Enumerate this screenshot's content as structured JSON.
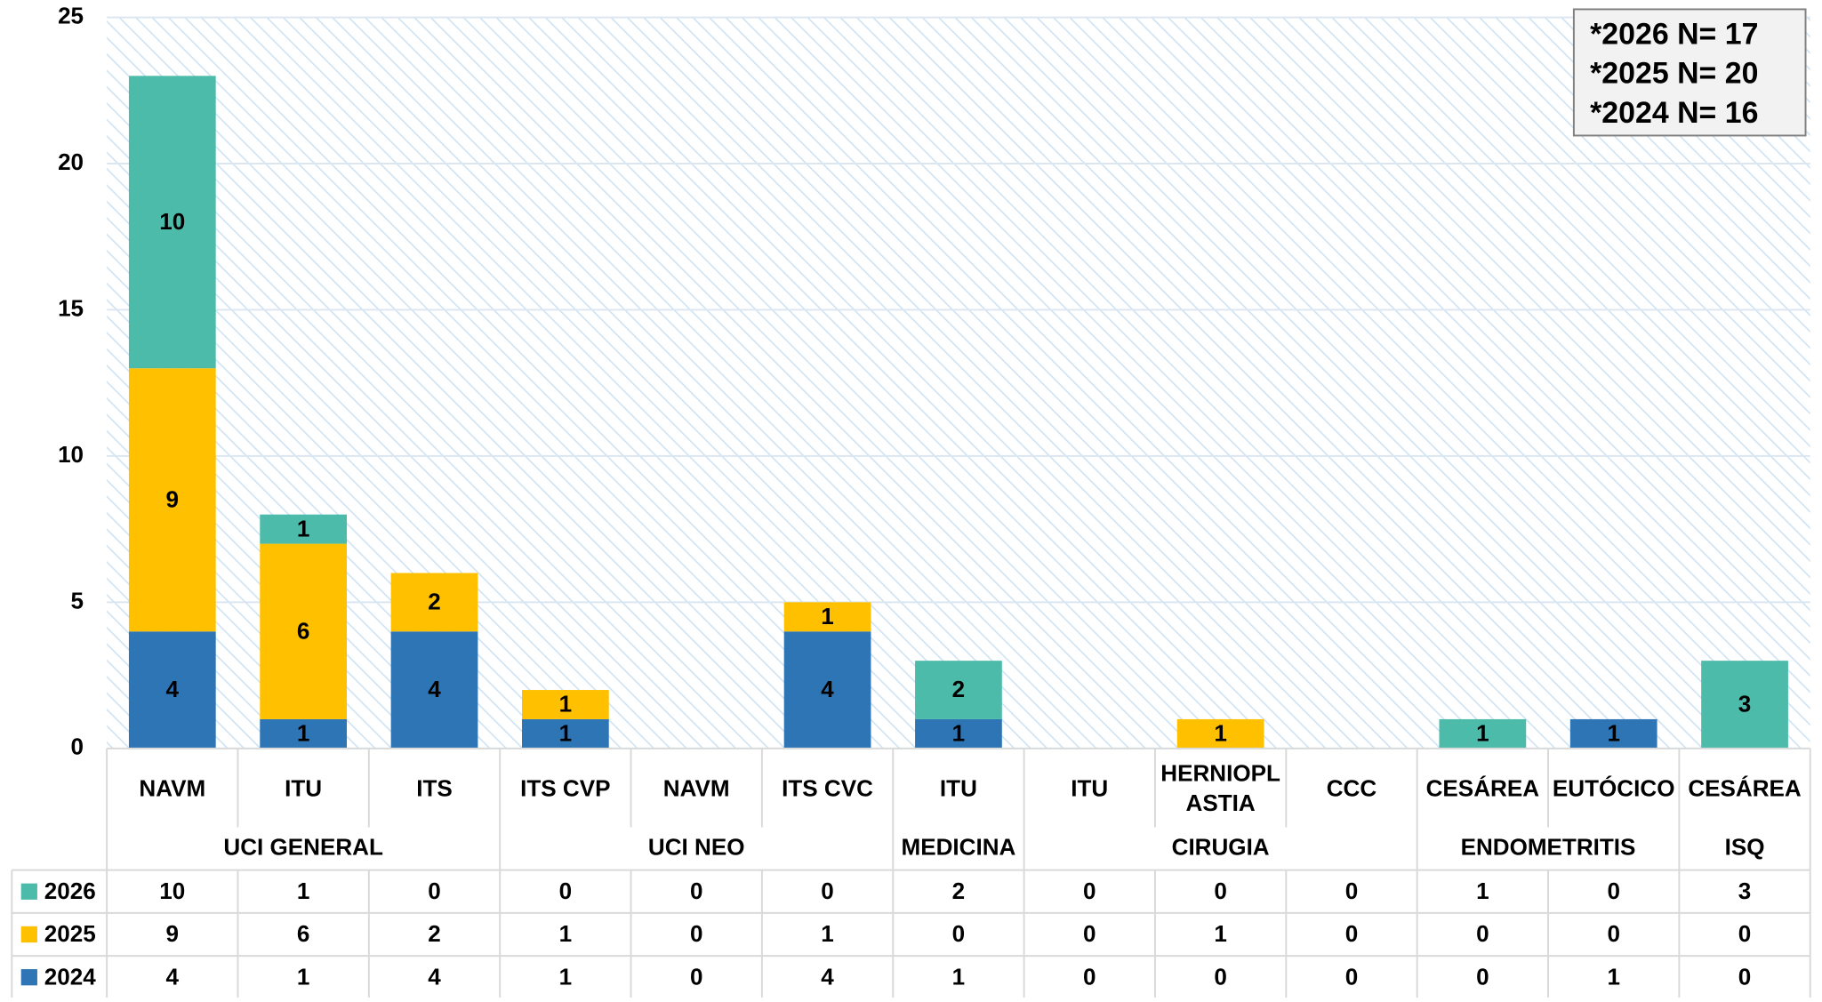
{
  "chart_data": {
    "type": "bar",
    "stacked": true,
    "categories": [
      "NAVM",
      "ITU",
      "ITS",
      "ITS CVP",
      "NAVM",
      "ITS CVC",
      "ITU",
      "ITU",
      "HERNIOPLASTIA",
      "CCC",
      "CESÁREA",
      "EUTÓCICO",
      "CESÁREA"
    ],
    "groups": [
      {
        "label": "UCI GENERAL",
        "start": 0,
        "end": 2
      },
      {
        "label": "UCI NEO",
        "start": 3,
        "end": 5
      },
      {
        "label": "MEDICINA",
        "start": 6,
        "end": 6
      },
      {
        "label": "CIRUGIA",
        "start": 7,
        "end": 9
      },
      {
        "label": "ENDOMETRITIS",
        "start": 10,
        "end": 11
      },
      {
        "label": "ISQ",
        "start": 12,
        "end": 12
      }
    ],
    "series": [
      {
        "name": "2024",
        "color": "#2e75b6",
        "values": [
          4,
          1,
          4,
          1,
          0,
          4,
          1,
          0,
          0,
          0,
          0,
          1,
          0
        ]
      },
      {
        "name": "2025",
        "color": "#ffc000",
        "values": [
          9,
          6,
          2,
          1,
          0,
          1,
          0,
          0,
          1,
          0,
          0,
          0,
          0
        ]
      },
      {
        "name": "2026",
        "color": "#4dbbaa",
        "values": [
          10,
          1,
          0,
          0,
          0,
          0,
          2,
          0,
          0,
          0,
          1,
          0,
          3
        ]
      }
    ],
    "ylim": [
      0,
      25
    ],
    "yticks": [
      0,
      5,
      10,
      15,
      20,
      25
    ],
    "grid": true,
    "data_table": true,
    "annotations": [
      {
        "text": "*2026 N= 17",
        "color": "#c00000"
      },
      {
        "text": "*2025 N= 20",
        "color": "#000000"
      },
      {
        "text": "*2024 N= 16",
        "color": "#000000"
      }
    ]
  }
}
